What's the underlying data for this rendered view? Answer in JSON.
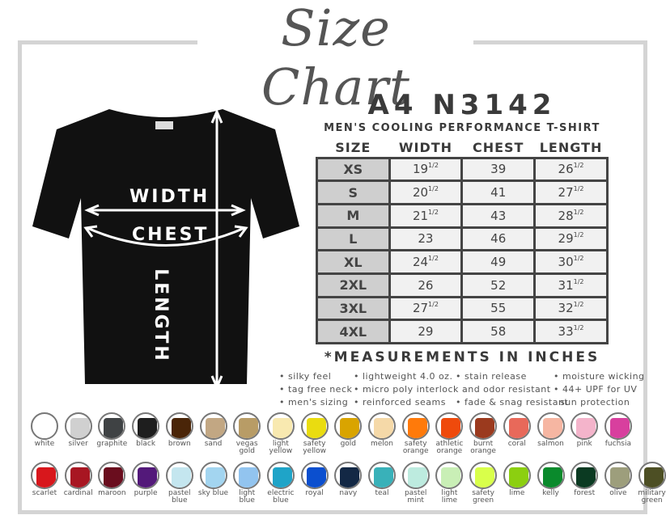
{
  "title": "Size Chart",
  "model": "A4 N3142",
  "subtitle": "MEN'S COOLING PERFORMANCE T-SHIRT",
  "shirt_labels": {
    "width": "WIDTH",
    "chest": "CHEST",
    "length": "LENGTH"
  },
  "table": {
    "headers": [
      "SIZE",
      "WIDTH",
      "CHEST",
      "LENGTH"
    ],
    "rows": [
      {
        "size": "XS",
        "width": "19",
        "width_frac": "1/2",
        "chest": "39",
        "length": "26",
        "length_frac": "1/2"
      },
      {
        "size": "S",
        "width": "20",
        "width_frac": "1/2",
        "chest": "41",
        "length": "27",
        "length_frac": "1/2"
      },
      {
        "size": "M",
        "width": "21",
        "width_frac": "1/2",
        "chest": "43",
        "length": "28",
        "length_frac": "1/2"
      },
      {
        "size": "L",
        "width": "23",
        "width_frac": "",
        "chest": "46",
        "length": "29",
        "length_frac": "1/2"
      },
      {
        "size": "XL",
        "width": "24",
        "width_frac": "1/2",
        "chest": "49",
        "length": "30",
        "length_frac": "1/2"
      },
      {
        "size": "2XL",
        "width": "26",
        "width_frac": "",
        "chest": "52",
        "length": "31",
        "length_frac": "1/2"
      },
      {
        "size": "3XL",
        "width": "27",
        "width_frac": "1/2",
        "chest": "55",
        "length": "32",
        "length_frac": "1/2"
      },
      {
        "size": "4XL",
        "width": "29",
        "width_frac": "",
        "chest": "58",
        "length": "33",
        "length_frac": "1/2"
      }
    ]
  },
  "note": "*MEASUREMENTS IN INCHES",
  "features": [
    [
      "• silky feel",
      "• tag free neck",
      "• men's sizing"
    ],
    [
      "• lightweight 4.0 oz.",
      "• micro poly interlock",
      "• reinforced seams"
    ],
    [
      "• stain release",
      "  and odor resistant",
      "• fade & snag resistant"
    ],
    [
      "• moisture wicking",
      "• 44+ UPF for UV",
      "  sun protection"
    ]
  ],
  "colors": [
    [
      [
        "white",
        "#ffffff"
      ],
      [
        "silver",
        "#d0d0d0"
      ],
      [
        "graphite",
        "#3f4244"
      ],
      [
        "black",
        "#1e1e1e"
      ],
      [
        "brown",
        "#4a2508"
      ],
      [
        "sand",
        "#c2a783"
      ],
      [
        "vegas gold",
        "#b89c66"
      ],
      [
        "light yellow",
        "#f8e9b0"
      ],
      [
        "safety yellow",
        "#eadc10"
      ],
      [
        "gold",
        "#d9a400"
      ],
      [
        "melon",
        "#f5d9a8"
      ],
      [
        "safety orange",
        "#ff7a0a"
      ],
      [
        "athletic orange",
        "#ef4a0c"
      ],
      [
        "burnt orange",
        "#9b3a1e"
      ],
      [
        "coral",
        "#e8695a"
      ],
      [
        "salmon",
        "#f6b6a2"
      ],
      [
        "pink",
        "#f4b4cb"
      ],
      [
        "fuchsia",
        "#d83f9e"
      ]
    ],
    [
      [
        "scarlet",
        "#d8171c"
      ],
      [
        "cardinal",
        "#a81622"
      ],
      [
        "maroon",
        "#6a0d1e"
      ],
      [
        "purple",
        "#53197a"
      ],
      [
        "pastel blue",
        "#c4e6ef"
      ],
      [
        "sky blue",
        "#a3d5f0"
      ],
      [
        "light blue",
        "#92c4ef"
      ],
      [
        "electric blue",
        "#1fa4c8"
      ],
      [
        "royal",
        "#0b4fcf"
      ],
      [
        "navy",
        "#132845"
      ],
      [
        "teal",
        "#39b1b9"
      ],
      [
        "pastel mint",
        "#bdebdf"
      ],
      [
        "light lime",
        "#c9efb6"
      ],
      [
        "safety green",
        "#d9ff4a"
      ],
      [
        "lime",
        "#8ccf10"
      ],
      [
        "kelly",
        "#0a8a2c"
      ],
      [
        "forest",
        "#0b3a22"
      ],
      [
        "olive",
        "#9d9e7c"
      ],
      [
        "military green",
        "#4d4f24"
      ]
    ]
  ]
}
